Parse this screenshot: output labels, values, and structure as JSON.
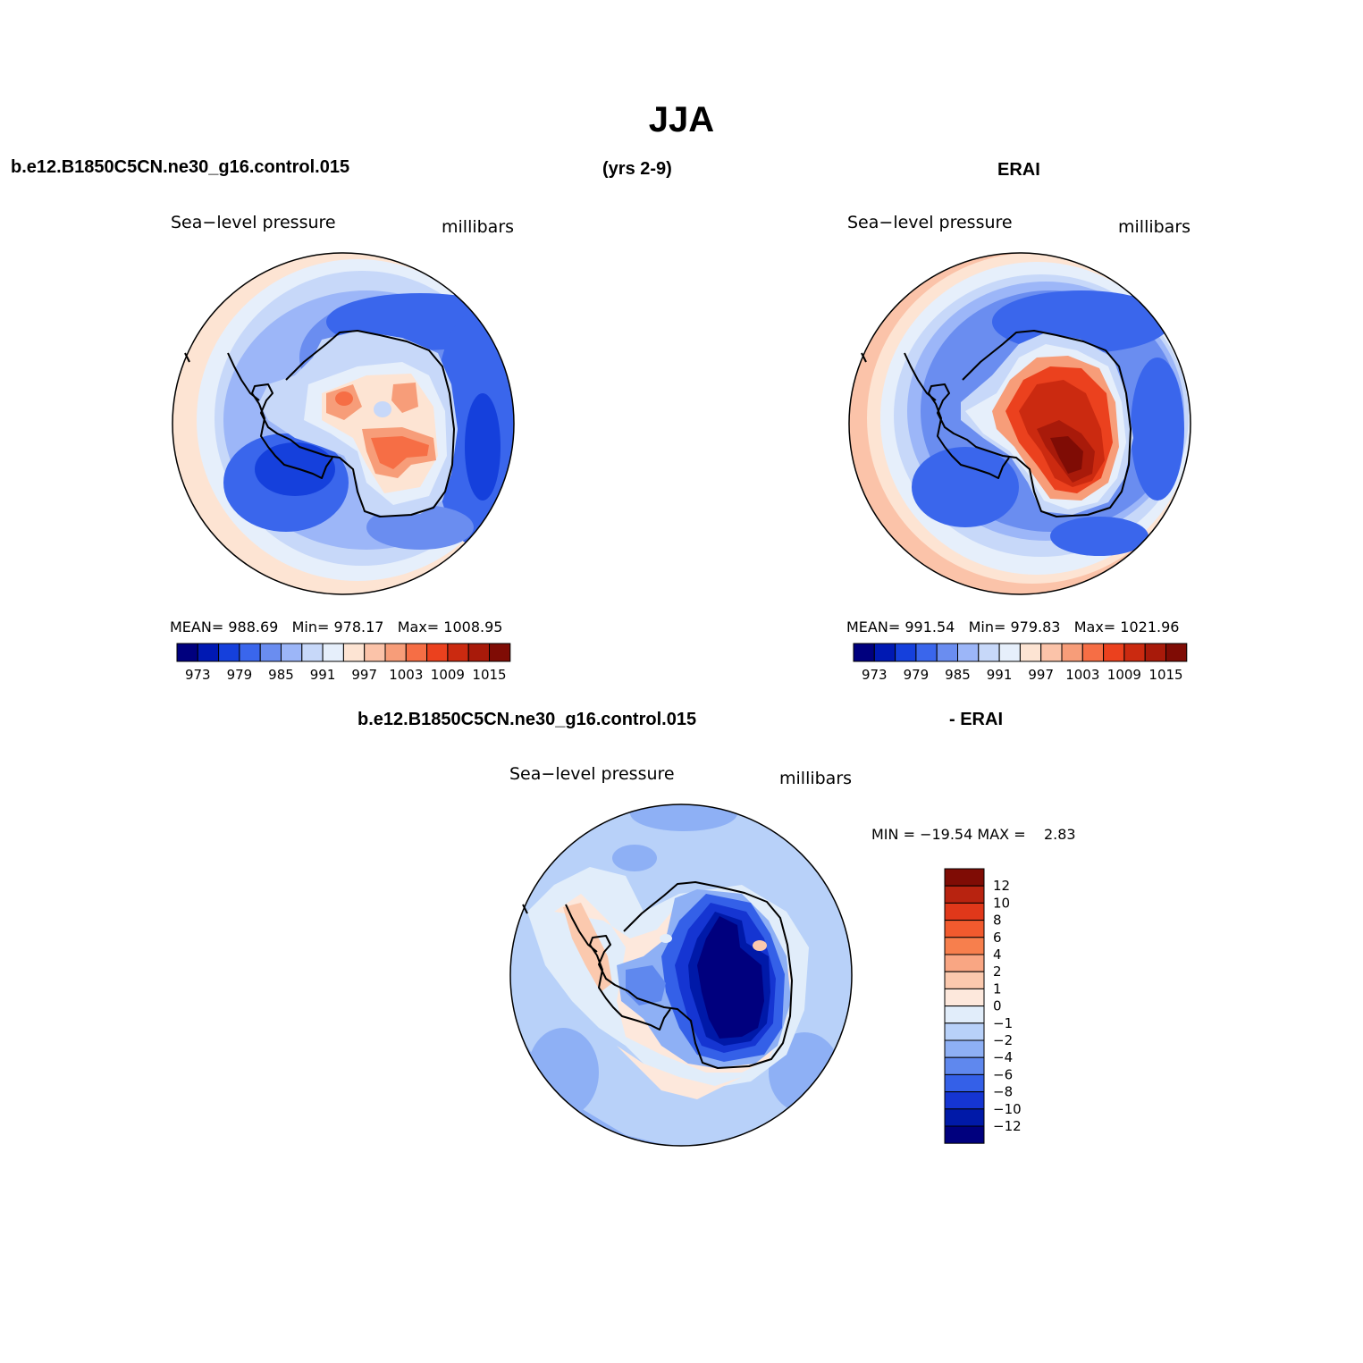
{
  "figure": {
    "title": "JJA",
    "left_case": "b.e12.B1850C5CN.ne30_g16.control.015",
    "years": "(yrs 2-9)",
    "right_case": "ERAI",
    "diff_case": "b.e12.B1850C5CN.ne30_g16.control.015",
    "diff_suffix": "- ERAI"
  },
  "chart_data": [
    {
      "type": "heatmap",
      "panel": "model",
      "projection": "south-polar-stereographic",
      "variable_label": "Sea−level pressure",
      "units_label": "millibars",
      "stats": {
        "mean_label": "MEAN=",
        "mean": "988.69",
        "min_label": "Min=",
        "min": "978.17",
        "max_label": "Max=",
        "max": "1008.95"
      },
      "colorbar_ticks": [
        "973",
        "979",
        "985",
        "991",
        "997",
        "1003",
        "1009",
        "1015"
      ],
      "colorbar_colors": [
        "#00007e",
        "#0019b3",
        "#1540dc",
        "#3a66ec",
        "#6a8df0",
        "#9cb6f8",
        "#c7d8f9",
        "#e6effb",
        "#fde4d3",
        "#fbc3a9",
        "#f79d79",
        "#f66e45",
        "#eb411e",
        "#cb2a10",
        "#a81a0a",
        "#7f0c05"
      ],
      "colorbar_orientation": "horizontal"
    },
    {
      "type": "heatmap",
      "panel": "observations",
      "projection": "south-polar-stereographic",
      "variable_label": "Sea−level pressure",
      "units_label": "millibars",
      "stats": {
        "mean_label": "MEAN=",
        "mean": "991.54",
        "min_label": "Min=",
        "min": "979.83",
        "max_label": "Max=",
        "max": "1021.96"
      },
      "colorbar_ticks": [
        "973",
        "979",
        "985",
        "991",
        "997",
        "1003",
        "1009",
        "1015"
      ],
      "colorbar_colors": [
        "#00007e",
        "#0019b3",
        "#1540dc",
        "#3a66ec",
        "#6a8df0",
        "#9cb6f8",
        "#c7d8f9",
        "#e6effb",
        "#fde4d3",
        "#fbc3a9",
        "#f79d79",
        "#f66e45",
        "#eb411e",
        "#cb2a10",
        "#a81a0a",
        "#7f0c05"
      ],
      "colorbar_orientation": "horizontal"
    },
    {
      "type": "heatmap",
      "panel": "difference",
      "projection": "south-polar-stereographic",
      "variable_label": "Sea−level pressure",
      "units_label": "millibars",
      "stats": {
        "min_label": "MIN =",
        "min": "−19.54",
        "max_label": "MAX =",
        "max": "2.83"
      },
      "colorbar_ticks": [
        "12",
        "10",
        "8",
        "6",
        "4",
        "2",
        "1",
        "0",
        "−1",
        "−2",
        "−4",
        "−6",
        "−8",
        "−10",
        "−12"
      ],
      "colorbar_colors": [
        "#7f0c05",
        "#b82310",
        "#e0381a",
        "#f15a2e",
        "#f77f4d",
        "#f9a683",
        "#fbc9ae",
        "#fde8dc",
        "#e1edfa",
        "#b8d1f9",
        "#8eb0f5",
        "#5f88ee",
        "#3460e8",
        "#1535d2",
        "#0019a8",
        "#00007e"
      ],
      "colorbar_orientation": "vertical"
    }
  ]
}
